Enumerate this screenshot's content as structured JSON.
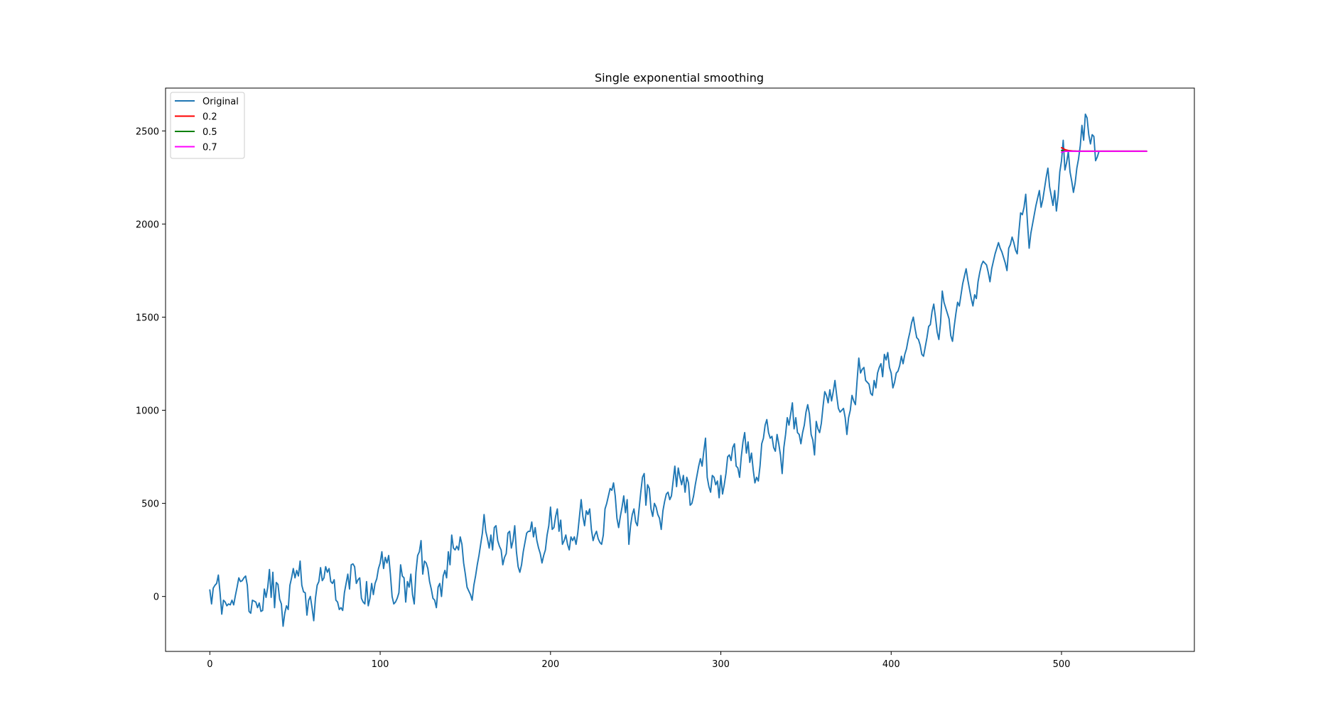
{
  "chart_data": {
    "type": "line",
    "title": "Single exponential smoothing",
    "xlabel": "",
    "ylabel": "",
    "xlim": [
      -26,
      578
    ],
    "ylim": [
      -295,
      2730
    ],
    "xticks": [
      0,
      100,
      200,
      300,
      400,
      500
    ],
    "yticks": [
      0,
      500,
      1000,
      1500,
      2000,
      2500
    ],
    "grid": false,
    "legend_position": "top-left",
    "series": [
      {
        "name": "Original",
        "color": "#1f77b4",
        "x_start": 0,
        "values": [
          35,
          -40,
          45,
          60,
          70,
          115,
          20,
          -95,
          -20,
          -30,
          -50,
          -40,
          -45,
          -20,
          -45,
          5,
          50,
          100,
          80,
          85,
          100,
          110,
          60,
          -80,
          -90,
          -20,
          -25,
          -30,
          -60,
          -35,
          -80,
          -75,
          40,
          -5,
          50,
          145,
          -5,
          130,
          -60,
          75,
          65,
          -15,
          -40,
          -160,
          -90,
          -50,
          -70,
          60,
          100,
          150,
          100,
          140,
          110,
          190,
          60,
          25,
          20,
          -100,
          -20,
          0,
          -60,
          -130,
          -10,
          60,
          80,
          155,
          85,
          100,
          160,
          130,
          150,
          80,
          70,
          90,
          -20,
          -30,
          -70,
          -60,
          -75,
          20,
          70,
          120,
          40,
          170,
          175,
          160,
          70,
          90,
          100,
          -10,
          -30,
          -40,
          80,
          -50,
          -10,
          70,
          10,
          70,
          95,
          150,
          180,
          240,
          150,
          210,
          180,
          220,
          120,
          0,
          -40,
          -30,
          -10,
          20,
          170,
          110,
          100,
          -30,
          80,
          50,
          120,
          10,
          -40,
          130,
          220,
          240,
          300,
          120,
          190,
          180,
          150,
          80,
          40,
          -10,
          -20,
          -60,
          50,
          70,
          0,
          110,
          140,
          100,
          240,
          170,
          330,
          260,
          250,
          270,
          250,
          320,
          280,
          180,
          120,
          50,
          30,
          10,
          -20,
          60,
          110,
          170,
          220,
          280,
          340,
          440,
          350,
          310,
          260,
          330,
          250,
          370,
          380,
          300,
          270,
          250,
          170,
          210,
          230,
          340,
          350,
          260,
          300,
          380,
          240,
          160,
          130,
          170,
          240,
          290,
          340,
          350,
          350,
          400,
          320,
          370,
          300,
          260,
          230,
          180,
          220,
          250,
          330,
          380,
          480,
          360,
          370,
          430,
          470,
          350,
          410,
          280,
          300,
          330,
          280,
          250,
          320,
          300,
          320,
          280,
          340,
          430,
          520,
          430,
          380,
          460,
          440,
          470,
          360,
          300,
          330,
          350,
          310,
          290,
          280,
          330,
          470,
          500,
          540,
          580,
          570,
          610,
          540,
          420,
          370,
          430,
          480,
          540,
          450,
          520,
          280,
          380,
          440,
          470,
          400,
          380,
          470,
          560,
          640,
          660,
          490,
          600,
          580,
          470,
          430,
          500,
          480,
          440,
          420,
          360,
          460,
          510,
          550,
          560,
          520,
          540,
          620,
          700,
          590,
          690,
          640,
          600,
          650,
          560,
          640,
          610,
          490,
          500,
          540,
          600,
          650,
          700,
          740,
          700,
          780,
          850,
          640,
          590,
          560,
          650,
          640,
          600,
          620,
          530,
          650,
          550,
          600,
          660,
          750,
          760,
          730,
          800,
          820,
          700,
          690,
          640,
          750,
          830,
          880,
          770,
          830,
          720,
          770,
          680,
          610,
          640,
          620,
          700,
          820,
          850,
          920,
          950,
          880,
          850,
          860,
          800,
          780,
          870,
          820,
          760,
          660,
          800,
          870,
          960,
          920,
          980,
          1040,
          900,
          960,
          880,
          870,
          820,
          880,
          920,
          990,
          1030,
          980,
          870,
          840,
          760,
          940,
          900,
          880,
          930,
          1020,
          1100,
          1080,
          1040,
          1110,
          1050,
          1100,
          1160,
          1080,
          1010,
          990,
          1000,
          1010,
          960,
          870,
          960,
          1000,
          1080,
          1050,
          1030,
          1160,
          1280,
          1200,
          1220,
          1230,
          1160,
          1150,
          1140,
          1090,
          1080,
          1160,
          1120,
          1200,
          1230,
          1250,
          1180,
          1300,
          1270,
          1310,
          1230,
          1200,
          1120,
          1150,
          1200,
          1210,
          1240,
          1290,
          1250,
          1300,
          1330,
          1380,
          1420,
          1470,
          1500,
          1440,
          1390,
          1380,
          1350,
          1300,
          1290,
          1340,
          1390,
          1450,
          1460,
          1530,
          1570,
          1500,
          1420,
          1380,
          1470,
          1640,
          1580,
          1550,
          1520,
          1490,
          1400,
          1370,
          1450,
          1520,
          1580,
          1560,
          1620,
          1680,
          1720,
          1760,
          1700,
          1650,
          1600,
          1560,
          1620,
          1600,
          1690,
          1740,
          1780,
          1800,
          1790,
          1780,
          1740,
          1690,
          1760,
          1800,
          1840,
          1870,
          1900,
          1870,
          1850,
          1820,
          1790,
          1750,
          1870,
          1890,
          1930,
          1900,
          1860,
          1840,
          1960,
          2060,
          2050,
          2090,
          2160,
          2010,
          1870,
          1950,
          2000,
          2050,
          2100,
          2140,
          2180,
          2090,
          2130,
          2190,
          2250,
          2300,
          2200,
          2150,
          2100,
          2180,
          2070,
          2150,
          2280,
          2340,
          2450,
          2290,
          2330,
          2390,
          2280,
          2230,
          2170,
          2220,
          2300,
          2350,
          2420,
          2530,
          2450,
          2590,
          2570,
          2480,
          2430,
          2480,
          2470,
          2340,
          2360,
          2390
        ]
      },
      {
        "name": "0.2",
        "color": "#ff0000",
        "x_start": 500,
        "values": [
          2410,
          2405,
          2400,
          2397,
          2395,
          2394,
          2393,
          2392,
          2392,
          2391,
          2391,
          2391,
          2391,
          2391,
          2391,
          2391,
          2391,
          2391,
          2391,
          2391,
          2391,
          2391,
          2391,
          2391,
          2391,
          2391,
          2391,
          2391,
          2391,
          2391,
          2391,
          2391,
          2391,
          2391,
          2391,
          2391,
          2391,
          2391,
          2391,
          2391,
          2391,
          2391,
          2391,
          2391,
          2391,
          2391,
          2391,
          2391,
          2391,
          2391,
          2391
        ]
      },
      {
        "name": "0.5",
        "color": "#008000",
        "x_start": 500,
        "values": [
          2395,
          2393,
          2392,
          2391,
          2391,
          2391,
          2391,
          2391,
          2391,
          2391,
          2391,
          2391,
          2391,
          2391,
          2391,
          2391,
          2391,
          2391,
          2391,
          2391,
          2391,
          2391,
          2391,
          2391,
          2391,
          2391,
          2391,
          2391,
          2391,
          2391,
          2391,
          2391,
          2391,
          2391,
          2391,
          2391,
          2391,
          2391,
          2391,
          2391,
          2391,
          2391,
          2391,
          2391,
          2391,
          2391,
          2391,
          2391,
          2391,
          2391,
          2391
        ]
      },
      {
        "name": "0.7",
        "color": "#ff00ff",
        "x_start": 500,
        "values": [
          2385,
          2388,
          2390,
          2391,
          2391,
          2391,
          2391,
          2391,
          2391,
          2391,
          2391,
          2391,
          2391,
          2391,
          2391,
          2391,
          2391,
          2391,
          2391,
          2391,
          2391,
          2391,
          2391,
          2391,
          2391,
          2391,
          2391,
          2391,
          2391,
          2391,
          2391,
          2391,
          2391,
          2391,
          2391,
          2391,
          2391,
          2391,
          2391,
          2391,
          2391,
          2391,
          2391,
          2391,
          2391,
          2391,
          2391,
          2391,
          2391,
          2391,
          2391
        ]
      }
    ]
  }
}
